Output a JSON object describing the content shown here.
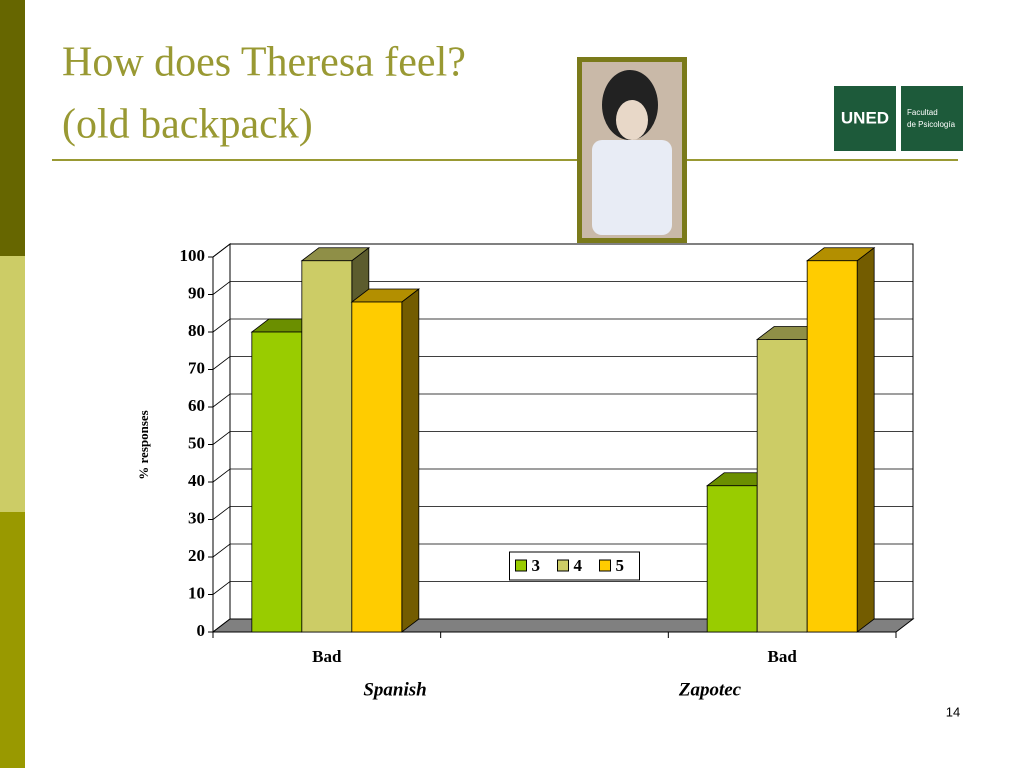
{
  "slide": {
    "title": "How does Theresa feel?",
    "subtitle": "(old backpack)",
    "page_number": "14",
    "logo": {
      "mark": "UNED",
      "line1": "Facultad",
      "line2": "de Psicología"
    }
  },
  "chart_data": {
    "type": "bar3d",
    "y_label": "% responses",
    "categories": [
      "Bad",
      null,
      "Bad"
    ],
    "group_labels": [
      "Spanish",
      "Zapotec"
    ],
    "series": [
      {
        "name": "3",
        "color": "#99cc00",
        "values": [
          80,
          null,
          39
        ]
      },
      {
        "name": "4",
        "color": "#cccc66",
        "values": [
          99,
          null,
          78
        ]
      },
      {
        "name": "5",
        "color": "#ffcc00",
        "values": [
          88,
          null,
          99
        ]
      }
    ],
    "ylim": [
      0,
      100
    ],
    "yticks": [
      0,
      10,
      20,
      30,
      40,
      50,
      60,
      70,
      80,
      90,
      100
    ],
    "grid": true,
    "legend": "center"
  }
}
